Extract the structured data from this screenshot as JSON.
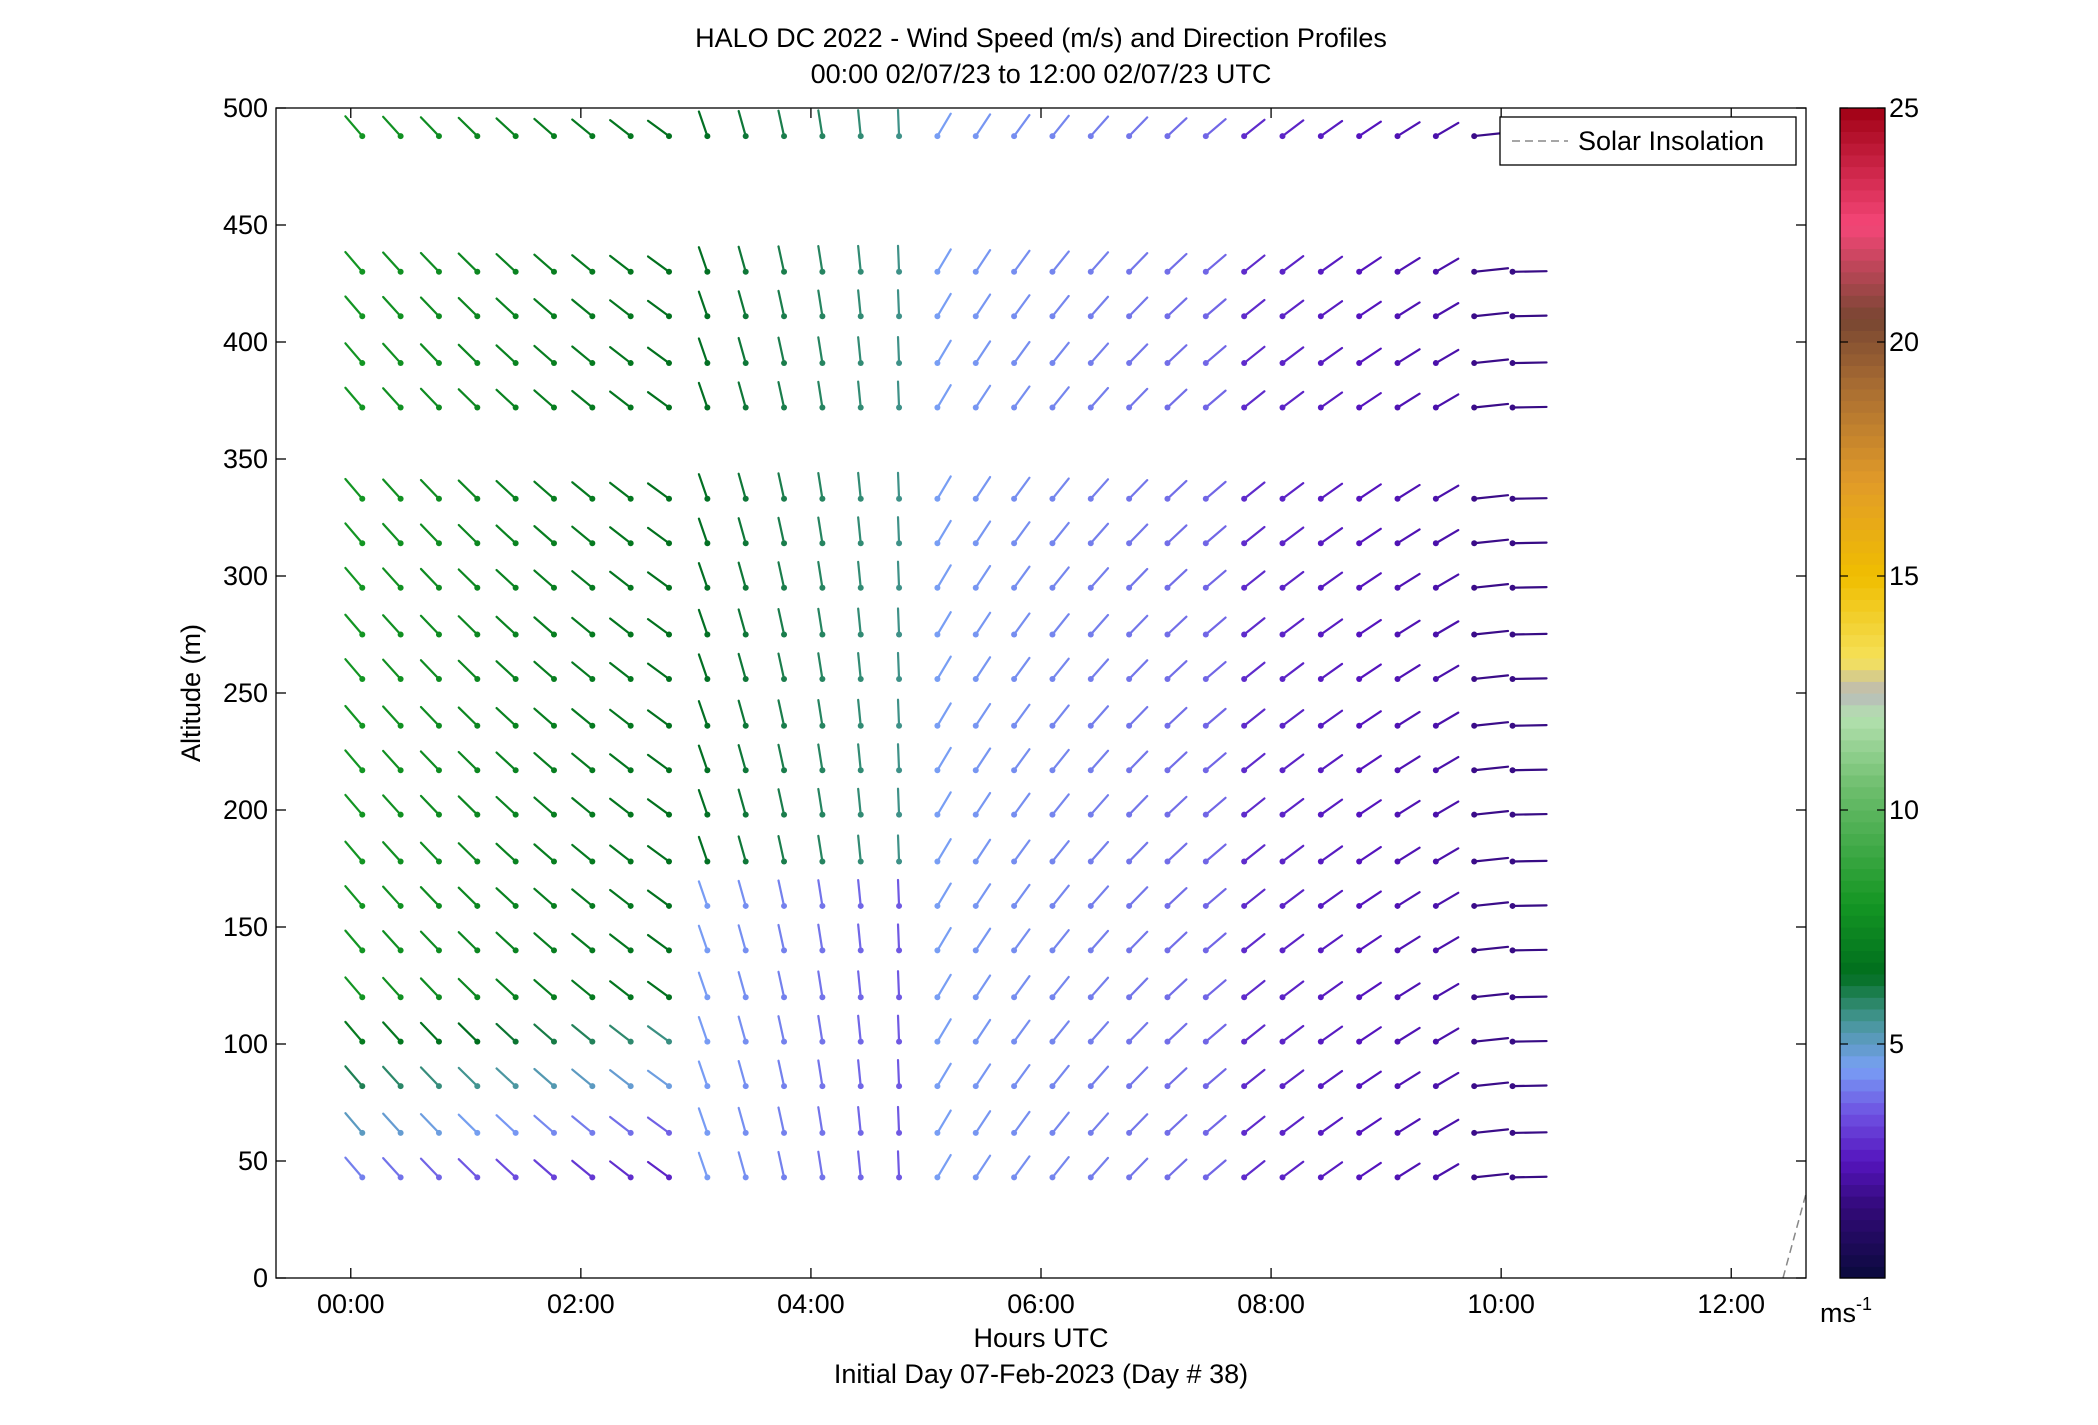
{
  "chart_data": {
    "type": "wind-barb-profile",
    "title": "HALO DC 2022 - Wind Speed (m/s) and Direction Profiles",
    "subtitle": "00:00 02/07/23 to 12:00 02/07/23  UTC",
    "xlabel": "Hours UTC",
    "xlabel2": "Initial Day 07-Feb-2023 (Day # 38)",
    "ylabel": "Altitude (m)",
    "xlim": [
      -0.65,
      12.65
    ],
    "ylim": [
      0,
      500
    ],
    "x_ticks": [
      0,
      2,
      4,
      6,
      8,
      10,
      12
    ],
    "x_tick_labels": [
      "00:00",
      "02:00",
      "04:00",
      "06:00",
      "08:00",
      "10:00",
      "12:00"
    ],
    "y_ticks": [
      0,
      50,
      100,
      150,
      200,
      250,
      300,
      350,
      400,
      450,
      500
    ],
    "y_tick_labels": [
      "0",
      "50",
      "100",
      "150",
      "200",
      "250",
      "300",
      "350",
      "400",
      "450",
      "500"
    ],
    "grid": false,
    "legend": {
      "position": "top-right",
      "entries": [
        {
          "label": "Solar Insolation",
          "style": "dashed",
          "color": "#888888"
        }
      ]
    },
    "colorbar": {
      "min": 0,
      "max": 25,
      "ticks": [
        5,
        10,
        15,
        20,
        25
      ],
      "tick_labels": [
        "5",
        "10",
        "15",
        "20",
        "25"
      ],
      "unit_label": "ms",
      "unit_exponent": "-1"
    },
    "time_start_hours": 0.1,
    "time_step_hours": 0.3333,
    "altitudes": [
      43,
      62,
      82,
      101,
      120,
      140,
      159,
      178,
      198,
      217,
      236,
      256,
      275,
      295,
      314,
      333,
      372,
      391,
      411,
      430,
      488
    ],
    "solar_insolation": [
      [
        12.45,
        0
      ],
      [
        12.65,
        36
      ]
    ]
  }
}
